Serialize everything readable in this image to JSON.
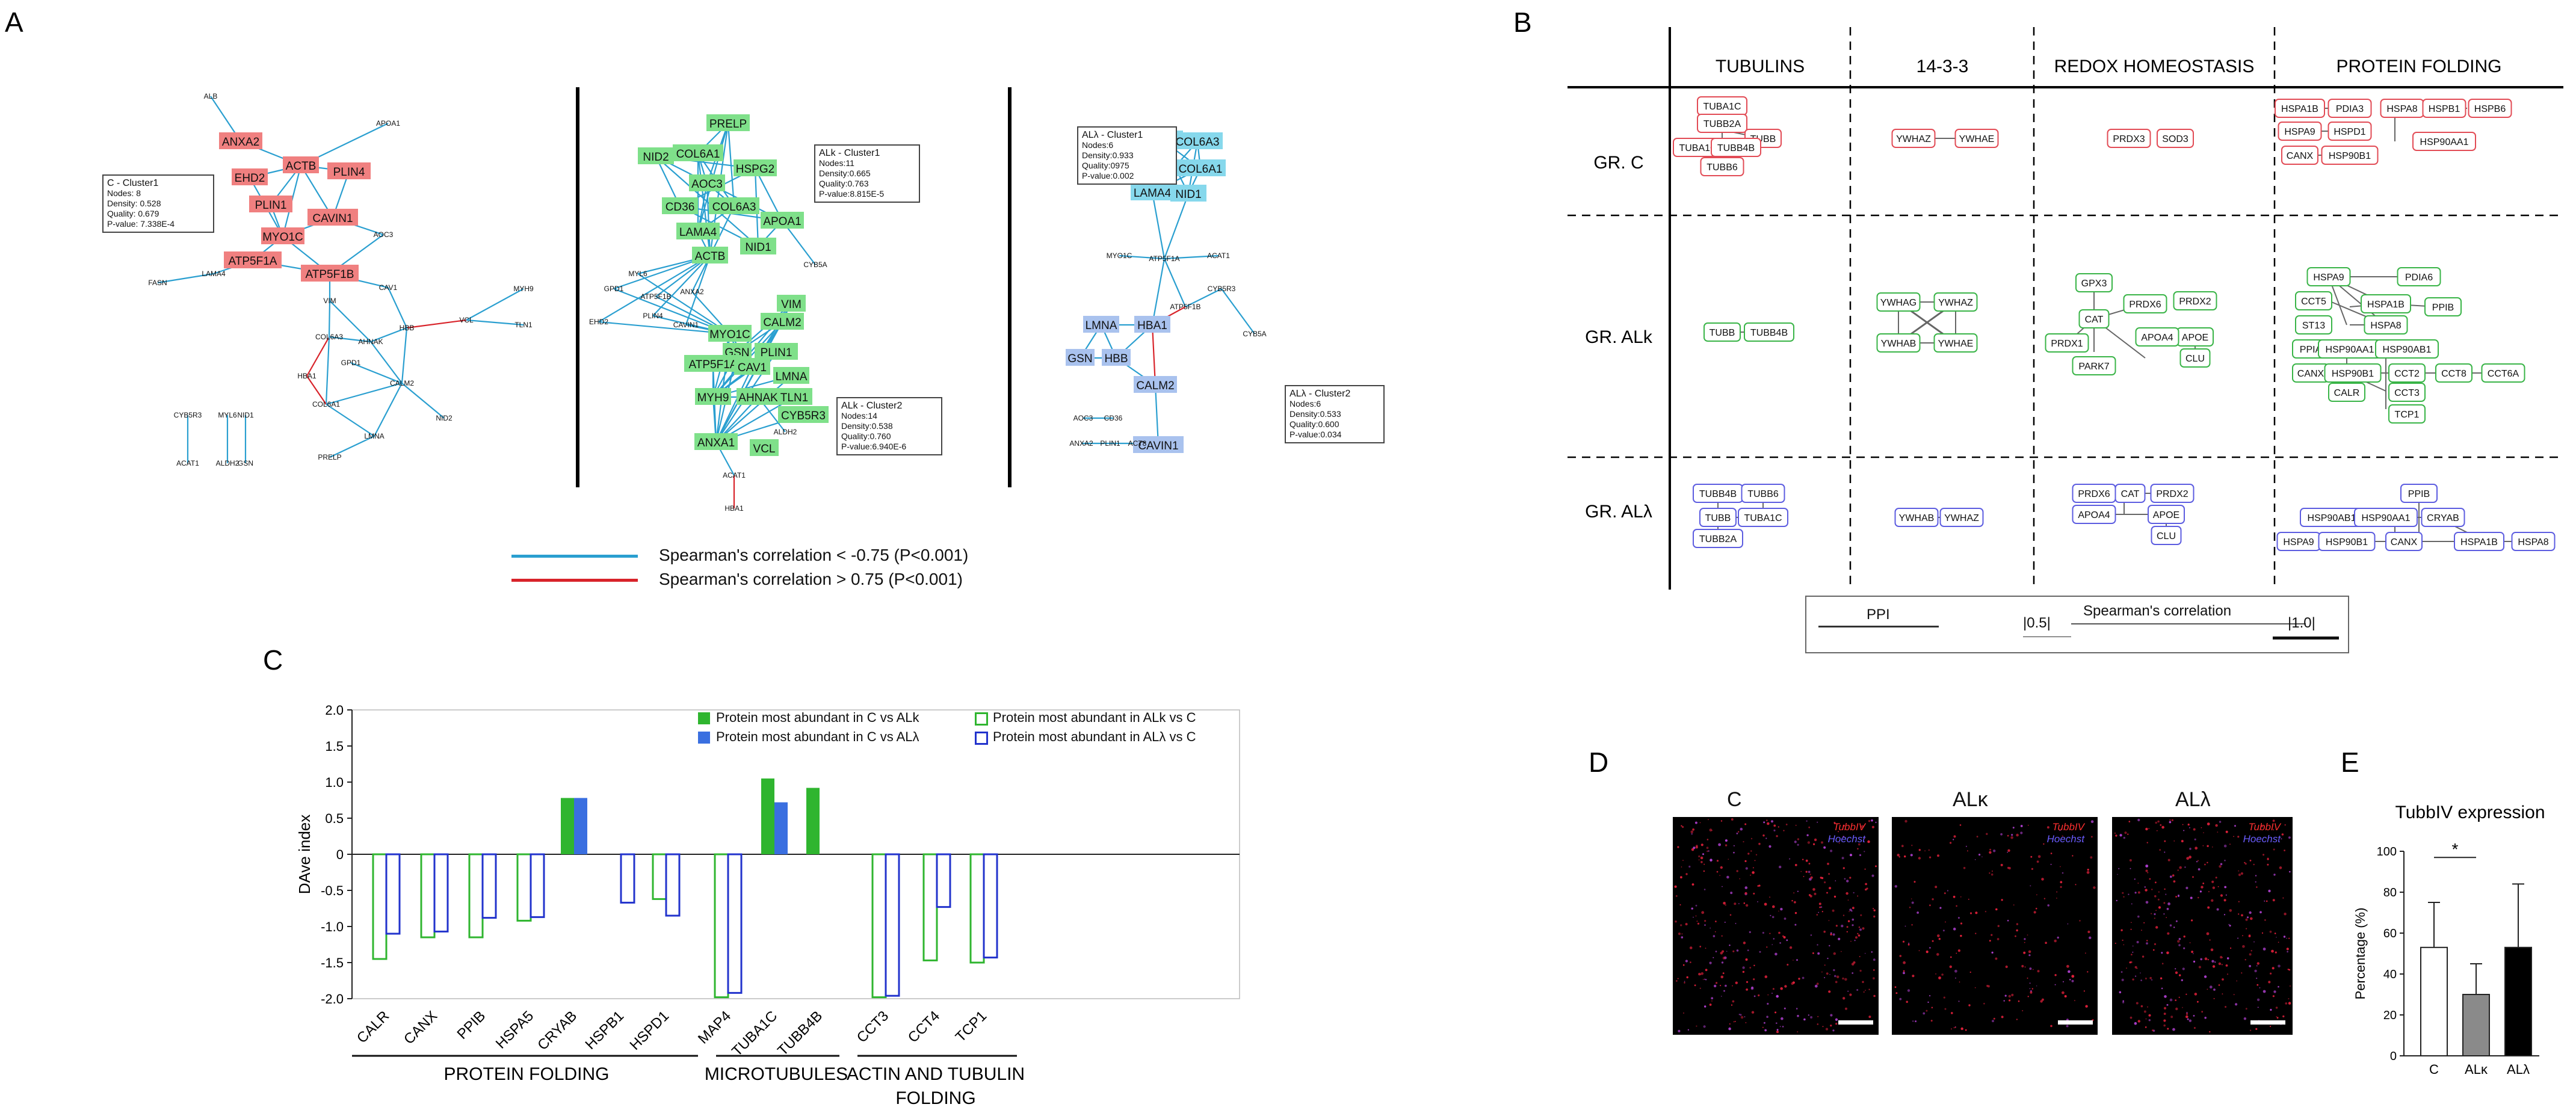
{
  "panels": {
    "a": "A",
    "b": "B",
    "c": "C",
    "d": "D",
    "e": "E"
  },
  "panel_a": {
    "cluster_c": {
      "title": "C - Cluster1",
      "lines": [
        "Nodes: 8",
        "Density: 0.528",
        "Quality: 0.679",
        "P-value: 7.338E-4"
      ]
    },
    "cluster_alk1": {
      "title": "ALk - Cluster1",
      "lines": [
        "Nodes:11",
        "Density:0.665",
        "Quality:0.763",
        "P-value:8.815E-5"
      ]
    },
    "cluster_alk2": {
      "title": "ALk - Cluster2",
      "lines": [
        "Nodes:14",
        "Density:0.538",
        "Quality:0.760",
        "P-value:6.940E-6"
      ]
    },
    "cluster_all1": {
      "title": "ALλ - Cluster1",
      "lines": [
        "Nodes:6",
        "Density:0.933",
        "Quality:0975",
        "P-value:0.002"
      ]
    },
    "cluster_all2": {
      "title": "ALλ - Cluster2",
      "lines": [
        "Nodes:6",
        "Density:0.533",
        "Quality:0.600",
        "P-value:0.034"
      ]
    },
    "legend_blue": "Spearman's correlation < -0.75 (P<0.001)",
    "legend_red": "Spearman's correlation > 0.75 (P<0.001)",
    "colors": {
      "red_node": "#f08080",
      "green_node": "#7fe08a",
      "cyan_node": "#86d8ec",
      "blue_node": "#a9c2ee",
      "blue_edge": "#2a9fd0",
      "red_edge": "#d8232a"
    }
  },
  "panel_b": {
    "columns": [
      "TUBULINS",
      "14-3-3",
      "REDOX HOMEOSTASIS",
      "PROTEIN FOLDING"
    ],
    "rows": [
      "GR. C",
      "GR. ALk",
      "GR. ALλ"
    ],
    "legend_ppi": "PPI",
    "legend_spearman": "Spearman's correlation",
    "legend_low": "|0.5|",
    "legend_high": "|1.0|"
  },
  "panel_c": {
    "ylabel": "DAve index",
    "legend": [
      "Protein most abundant in C vs ALk",
      "Protein most abundant in C vs ALλ",
      "Protein most abundant in ALk vs C",
      "Protein most abundant in ALλ vs C"
    ],
    "groups": [
      "PROTEIN FOLDING",
      "MICROTUBULES",
      "ACTIN AND TUBULIN",
      "FOLDING"
    ]
  },
  "chart_data": [
    {
      "type": "bar",
      "categories": [
        "CALR",
        "CANX",
        "PPIB",
        "HSPA5",
        "CRYAB",
        "HSPB1",
        "HSPD1",
        "MAP4",
        "TUBA1C",
        "TUBB4B",
        "CCT3",
        "CCT4",
        "TCP1"
      ],
      "series": [
        {
          "name": "C vs ALk",
          "values": [
            -1.45,
            -1.15,
            -1.15,
            -0.92,
            0.78,
            null,
            -0.62,
            -1.98,
            1.05,
            0.92,
            -1.98,
            -1.47,
            -1.5
          ]
        },
        {
          "name": "C vs ALλ",
          "values": [
            -1.1,
            -1.07,
            -0.88,
            -0.87,
            0.78,
            -0.67,
            -0.85,
            -1.92,
            0.72,
            null,
            -1.96,
            -0.73,
            -1.43
          ]
        }
      ],
      "ylabel": "DAve index",
      "ylim": [
        -2.0,
        2.0
      ],
      "yticks": [
        "2.0",
        "1.5",
        "1.0",
        "0.5",
        "0",
        "-0.5",
        "-1.0",
        "-1.5",
        "-2.0"
      ],
      "colors": {
        "alk": "#2fb52f",
        "all": "#3a6fe0"
      }
    },
    {
      "type": "bar",
      "title": "TubbIV expression",
      "categories": [
        "C",
        "ALκ",
        "ALλ"
      ],
      "values": [
        53,
        30,
        53
      ],
      "errors": [
        22,
        15,
        31
      ],
      "ylabel": "Percentage (%)",
      "ylim": [
        0,
        100
      ],
      "yticks": [
        "0",
        "20",
        "40",
        "60",
        "80",
        "100"
      ],
      "significance": "*",
      "colors": [
        "#ffffff",
        "#8a8a8a",
        "#000000"
      ]
    }
  ],
  "panel_d": {
    "titles": [
      "C",
      "ALκ",
      "ALλ"
    ],
    "stain1": "TubbIV",
    "stain2": "Hoechst"
  }
}
